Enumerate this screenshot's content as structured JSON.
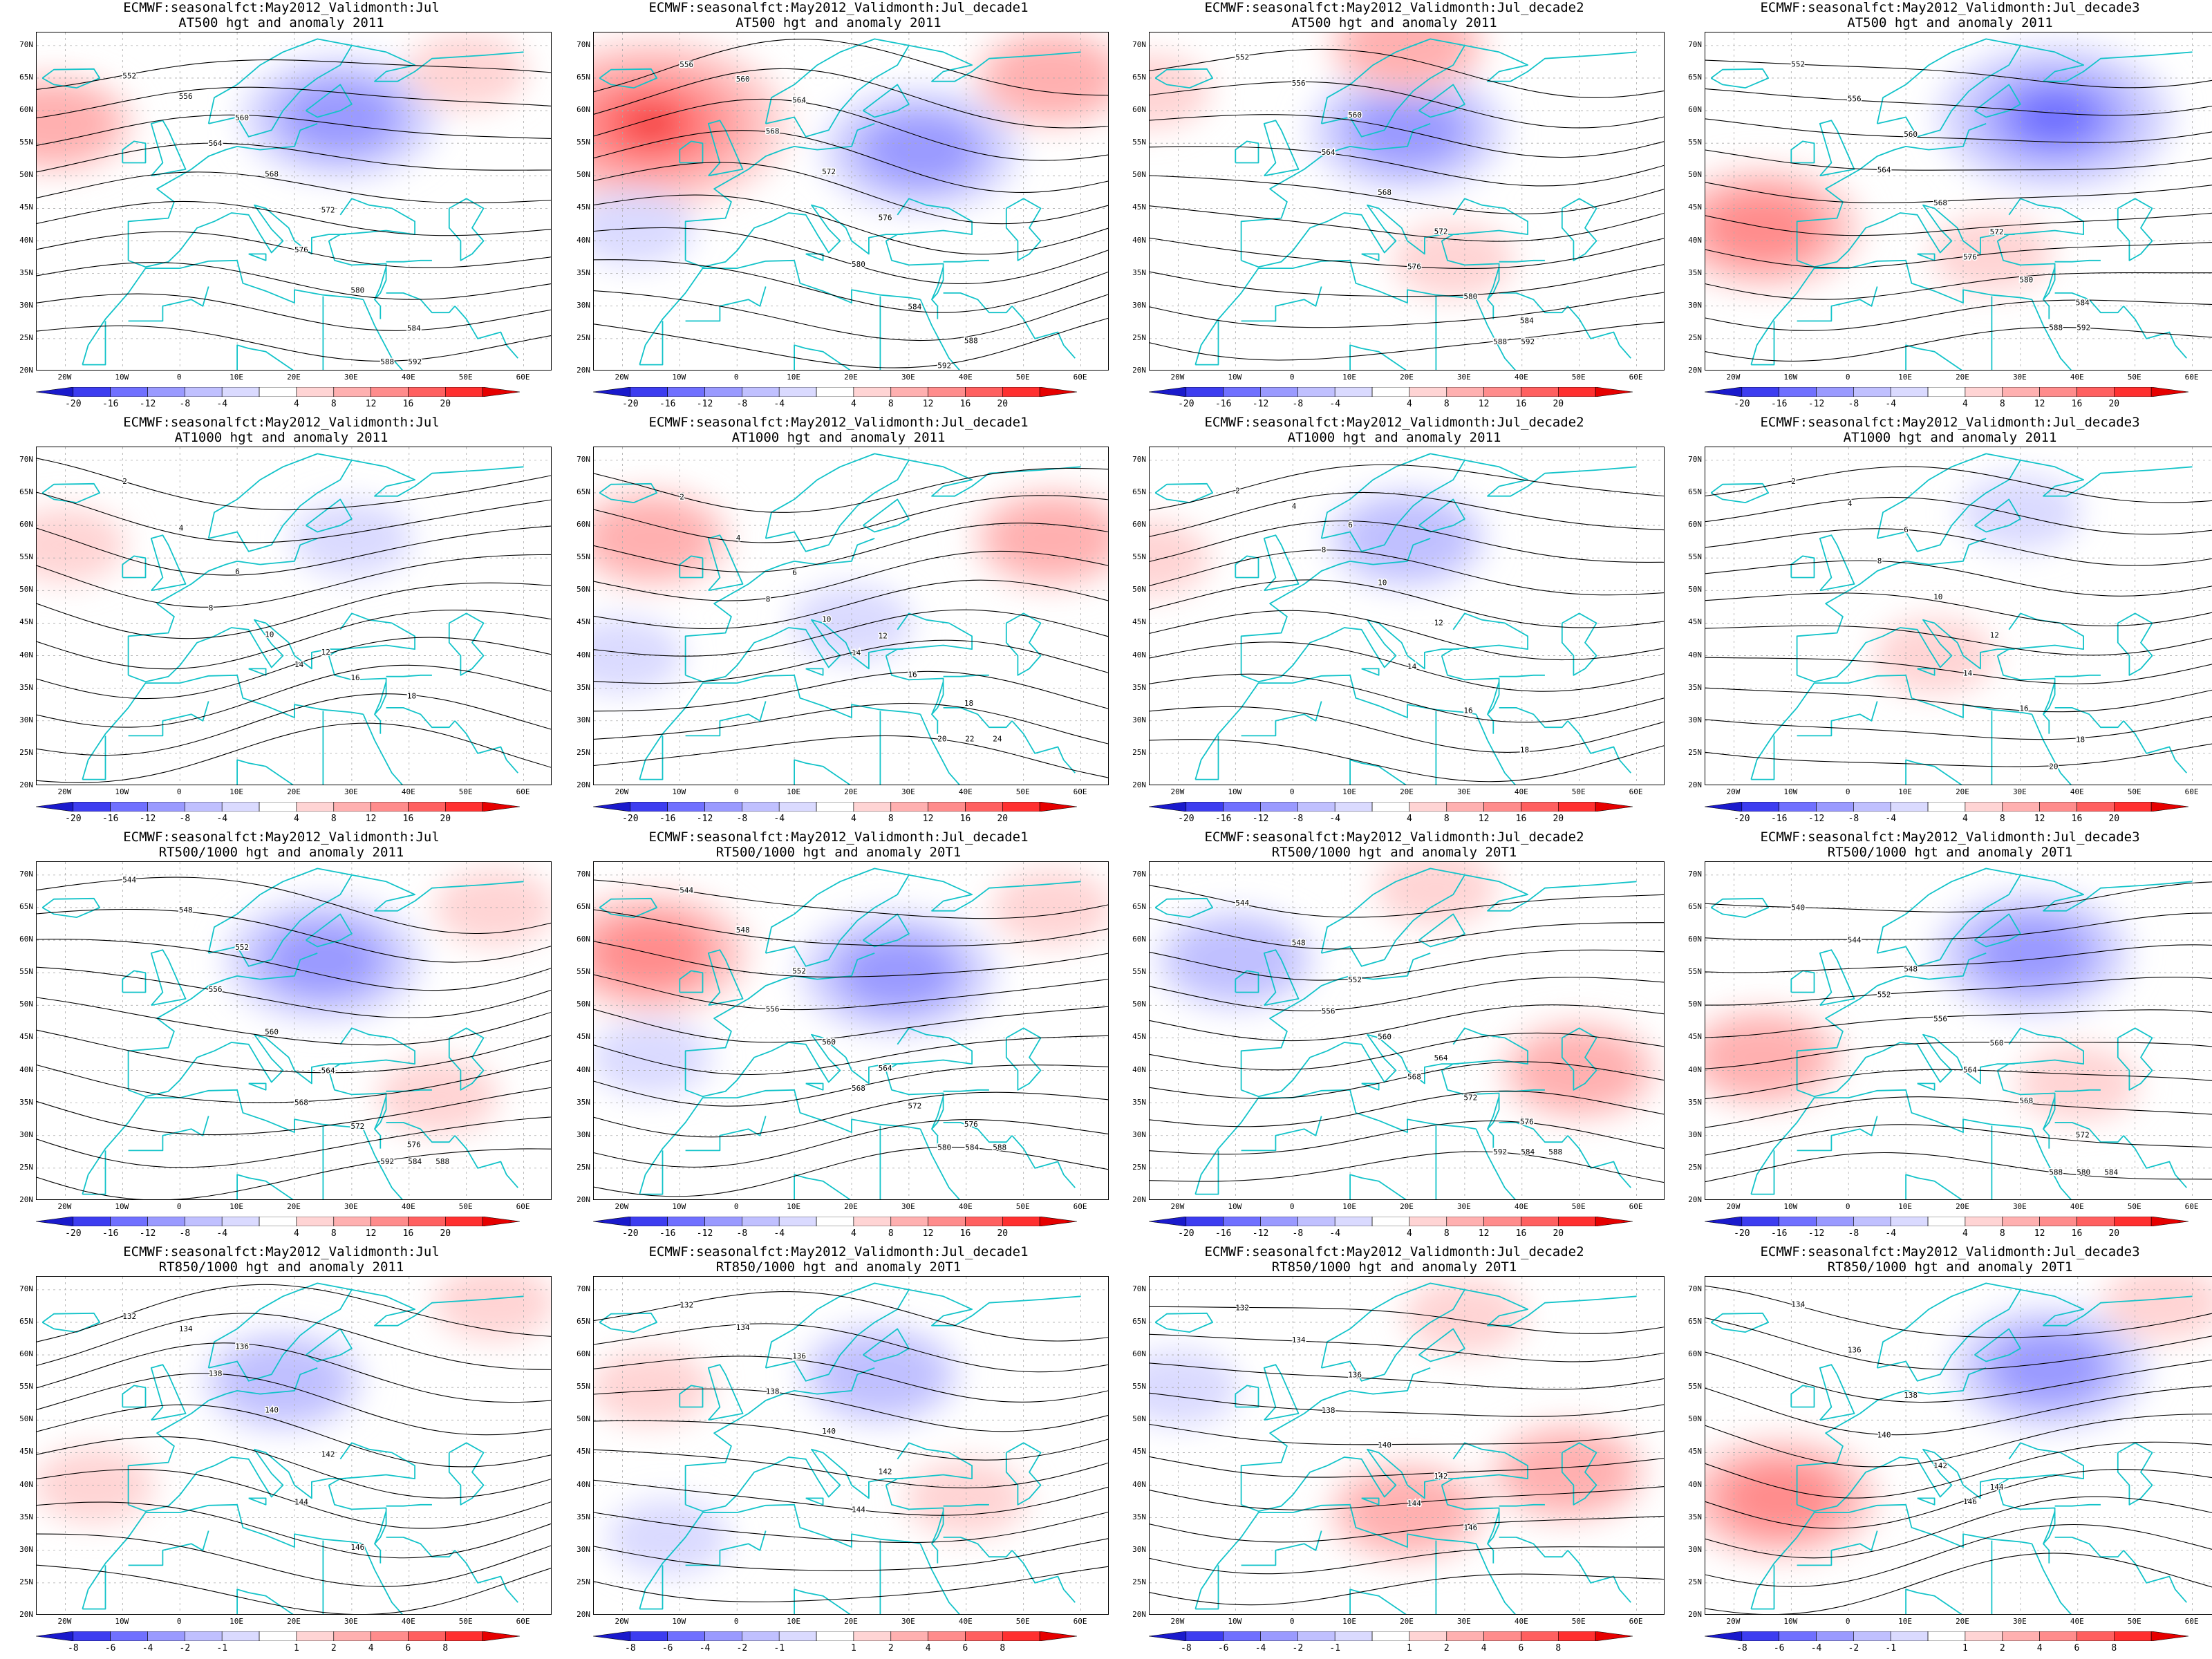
{
  "latitudes": [
    "70N",
    "65N",
    "60N",
    "55N",
    "50N",
    "45N",
    "40N",
    "35N",
    "30N",
    "25N",
    "20N"
  ],
  "longitudes": [
    "20W",
    "10W",
    "0",
    "10E",
    "20E",
    "30E",
    "40E",
    "50E",
    "60E"
  ],
  "colorbar_colors": [
    "#1a1acc",
    "#3d3df0",
    "#7070ff",
    "#9a9aff",
    "#c0c0ff",
    "#dadaff",
    "#ffffff",
    "#ffd4d4",
    "#ffb0b0",
    "#ff8c8c",
    "#ff6060",
    "#ff3030",
    "#e60000"
  ],
  "colorbars": {
    "hgt": [
      "-20",
      "-16",
      "-12",
      "-8",
      "-4",
      "4",
      "8",
      "12",
      "16",
      "20"
    ],
    "thick": [
      "-8",
      "-6",
      "-4",
      "-2",
      "-1",
      "1",
      "2",
      "4",
      "6",
      "8"
    ]
  },
  "panels": [
    {
      "title1": "ECMWF:seasonalfct:May2012_Validmonth:Jul",
      "title2": "AT500 hgt and anomaly 2011",
      "cbar": "hgt",
      "contour_labels": [
        "552",
        "556",
        "560",
        "564",
        "568",
        "572",
        "576",
        "580",
        "584",
        "588",
        "592"
      ],
      "anomaly_blobs": [
        {
          "lon": 28,
          "lat": 59,
          "sign": "neg",
          "level": 3
        },
        {
          "lon": -22,
          "lat": 58,
          "sign": "pos",
          "level": 2
        },
        {
          "lon": 50,
          "lat": 66,
          "sign": "pos",
          "level": 1
        }
      ]
    },
    {
      "title1": "ECMWF:seasonalfct:May2012_Validmonth:Jul_decade1",
      "title2": "AT500 hgt and anomaly 2011",
      "cbar": "hgt",
      "contour_labels": [
        "556",
        "560",
        "564",
        "568",
        "572",
        "576",
        "580",
        "584",
        "588",
        "592"
      ],
      "anomaly_blobs": [
        {
          "lon": -15,
          "lat": 58,
          "sign": "pos",
          "level": 5
        },
        {
          "lon": 32,
          "lat": 54,
          "sign": "neg",
          "level": 3
        },
        {
          "lon": -18,
          "lat": 42,
          "sign": "neg",
          "level": 1
        },
        {
          "lon": 55,
          "lat": 65,
          "sign": "pos",
          "level": 2
        }
      ]
    },
    {
      "title1": "ECMWF:seasonalfct:May2012_Validmonth:Jul_decade2",
      "title2": "AT500 hgt and anomaly 2011",
      "cbar": "hgt",
      "contour_labels": [
        "552",
        "556",
        "560",
        "564",
        "568",
        "572",
        "576",
        "580",
        "584",
        "588",
        "592"
      ],
      "anomaly_blobs": [
        {
          "lon": 20,
          "lat": 57,
          "sign": "neg",
          "level": 3
        },
        {
          "lon": 20,
          "lat": 70,
          "sign": "pos",
          "level": 2
        },
        {
          "lon": 28,
          "lat": 37,
          "sign": "pos",
          "level": 1
        },
        {
          "lon": -25,
          "lat": 63,
          "sign": "pos",
          "level": 1
        }
      ]
    },
    {
      "title1": "ECMWF:seasonalfct:May2012_Validmonth:Jul_decade3",
      "title2": "AT500 hgt and anomaly 2011",
      "cbar": "hgt",
      "contour_labels": [
        "552",
        "556",
        "560",
        "564",
        "568",
        "572",
        "576",
        "580",
        "584",
        "588",
        "592"
      ],
      "anomaly_blobs": [
        {
          "lon": 36,
          "lat": 59,
          "sign": "neg",
          "level": 4
        },
        {
          "lon": -15,
          "lat": 42,
          "sign": "pos",
          "level": 3
        },
        {
          "lon": 25,
          "lat": 38,
          "sign": "pos",
          "level": 1
        }
      ]
    },
    {
      "title1": "ECMWF:seasonalfct:May2012_Validmonth:Jul",
      "title2": "AT1000 hgt and anomaly 2011",
      "cbar": "hgt",
      "contour_labels": [
        "2",
        "4",
        "6",
        "8",
        "10",
        "12",
        "14",
        "16",
        "18"
      ],
      "anomaly_blobs": [
        {
          "lon": -20,
          "lat": 57,
          "sign": "pos",
          "level": 1
        },
        {
          "lon": 30,
          "lat": 58,
          "sign": "neg",
          "level": 1
        }
      ]
    },
    {
      "title1": "ECMWF:seasonalfct:May2012_Validmonth:Jul_decade1",
      "title2": "AT1000 hgt and anomaly 2011",
      "cbar": "hgt",
      "contour_labels": [
        "2",
        "4",
        "6",
        "8",
        "10",
        "12",
        "14",
        "16",
        "18",
        "20",
        "22",
        "24"
      ],
      "anomaly_blobs": [
        {
          "lon": -15,
          "lat": 58,
          "sign": "pos",
          "level": 2
        },
        {
          "lon": 20,
          "lat": 45,
          "sign": "neg",
          "level": 1
        },
        {
          "lon": 55,
          "lat": 58,
          "sign": "pos",
          "level": 2
        },
        {
          "lon": -20,
          "lat": 40,
          "sign": "neg",
          "level": 1
        }
      ]
    },
    {
      "title1": "ECMWF:seasonalfct:May2012_Validmonth:Jul_decade2",
      "title2": "AT1000 hgt and anomaly 2011",
      "cbar": "hgt",
      "contour_labels": [
        "2",
        "4",
        "6",
        "8",
        "10",
        "12",
        "14",
        "16",
        "18"
      ],
      "anomaly_blobs": [
        {
          "lon": 20,
          "lat": 58,
          "sign": "neg",
          "level": 2
        },
        {
          "lon": -25,
          "lat": 55,
          "sign": "pos",
          "level": 1
        }
      ]
    },
    {
      "title1": "ECMWF:seasonalfct:May2012_Validmonth:Jul_decade3",
      "title2": "AT1000 hgt and anomaly 2011",
      "cbar": "hgt",
      "contour_labels": [
        "2",
        "4",
        "6",
        "8",
        "10",
        "12",
        "14",
        "16",
        "18",
        "20"
      ],
      "anomaly_blobs": [
        {
          "lon": 30,
          "lat": 62,
          "sign": "neg",
          "level": 1
        },
        {
          "lon": 15,
          "lat": 40,
          "sign": "pos",
          "level": 1
        }
      ]
    },
    {
      "title1": "ECMWF:seasonalfct:May2012_Validmonth:Jul",
      "title2": "RT500/1000 hgt and anomaly 2011",
      "cbar": "hgt",
      "contour_labels": [
        "544",
        "548",
        "552",
        "556",
        "560",
        "564",
        "568",
        "572",
        "576",
        "580",
        "584",
        "588",
        "592"
      ],
      "anomaly_blobs": [
        {
          "lon": 25,
          "lat": 57,
          "sign": "neg",
          "level": 3
        },
        {
          "lon": 55,
          "lat": 65,
          "sign": "pos",
          "level": 1
        },
        {
          "lon": 45,
          "lat": 36,
          "sign": "pos",
          "level": 1
        }
      ]
    },
    {
      "title1": "ECMWF:seasonalfct:May2012_Validmonth:Jul_decade1",
      "title2": "RT500/1000 hgt and anomaly 20T1",
      "cbar": "hgt",
      "contour_labels": [
        "544",
        "548",
        "552",
        "556",
        "560",
        "564",
        "568",
        "572",
        "576",
        "580",
        "584",
        "588"
      ],
      "anomaly_blobs": [
        {
          "lon": -15,
          "lat": 58,
          "sign": "pos",
          "level": 3
        },
        {
          "lon": 28,
          "lat": 55,
          "sign": "neg",
          "level": 3
        },
        {
          "lon": -15,
          "lat": 42,
          "sign": "neg",
          "level": 1
        },
        {
          "lon": 55,
          "lat": 65,
          "sign": "pos",
          "level": 1
        }
      ]
    },
    {
      "title1": "ECMWF:seasonalfct:May2012_Validmonth:Jul_decade2",
      "title2": "RT500/1000 hgt and anomaly 20T1",
      "cbar": "hgt",
      "contour_labels": [
        "544",
        "548",
        "552",
        "556",
        "560",
        "564",
        "568",
        "572",
        "576",
        "580",
        "584",
        "588",
        "592"
      ],
      "anomaly_blobs": [
        {
          "lon": -10,
          "lat": 57,
          "sign": "neg",
          "level": 2
        },
        {
          "lon": 25,
          "lat": 68,
          "sign": "pos",
          "level": 1
        },
        {
          "lon": 50,
          "lat": 40,
          "sign": "pos",
          "level": 2
        }
      ]
    },
    {
      "title1": "ECMWF:seasonalfct:May2012_Validmonth:Jul_decade3",
      "title2": "RT500/1000 hgt and anomaly 20T1",
      "cbar": "hgt",
      "contour_labels": [
        "540",
        "544",
        "548",
        "552",
        "556",
        "560",
        "564",
        "568",
        "572",
        "576",
        "580",
        "584",
        "588"
      ],
      "anomaly_blobs": [
        {
          "lon": 32,
          "lat": 58,
          "sign": "neg",
          "level": 3
        },
        {
          "lon": -15,
          "lat": 42,
          "sign": "pos",
          "level": 2
        },
        {
          "lon": 40,
          "lat": 38,
          "sign": "pos",
          "level": 1
        }
      ]
    },
    {
      "title1": "ECMWF:seasonalfct:May2012_Validmonth:Jul",
      "title2": "RT850/1000 hgt and anomaly 2011",
      "cbar": "thick",
      "contour_labels": [
        "132",
        "134",
        "136",
        "138",
        "140",
        "142",
        "144",
        "146"
      ],
      "anomaly_blobs": [
        {
          "lon": 18,
          "lat": 56,
          "sign": "neg",
          "level": 2
        },
        {
          "lon": 55,
          "lat": 68,
          "sign": "pos",
          "level": 1
        },
        {
          "lon": -15,
          "lat": 40,
          "sign": "pos",
          "level": 1
        }
      ]
    },
    {
      "title1": "ECMWF:seasonalfct:May2012_Validmonth:Jul_decade1",
      "title2": "RT850/1000 hgt and anomaly 20T1",
      "cbar": "thick",
      "contour_labels": [
        "132",
        "134",
        "136",
        "138",
        "140",
        "142",
        "144"
      ],
      "anomaly_blobs": [
        {
          "lon": 25,
          "lat": 57,
          "sign": "neg",
          "level": 2
        },
        {
          "lon": -15,
          "lat": 55,
          "sign": "pos",
          "level": 1
        },
        {
          "lon": -12,
          "lat": 32,
          "sign": "neg",
          "level": 1
        },
        {
          "lon": 40,
          "lat": 38,
          "sign": "pos",
          "level": 1
        }
      ]
    },
    {
      "title1": "ECMWF:seasonalfct:May2012_Validmonth:Jul_decade2",
      "title2": "RT850/1000 hgt and anomaly 20T1",
      "cbar": "thick",
      "contour_labels": [
        "132",
        "134",
        "136",
        "138",
        "140",
        "142",
        "144",
        "146"
      ],
      "anomaly_blobs": [
        {
          "lon": -20,
          "lat": 55,
          "sign": "neg",
          "level": 1
        },
        {
          "lon": 30,
          "lat": 66,
          "sign": "pos",
          "level": 1
        },
        {
          "lon": 20,
          "lat": 36,
          "sign": "pos",
          "level": 2
        },
        {
          "lon": 48,
          "lat": 42,
          "sign": "pos",
          "level": 2
        }
      ]
    },
    {
      "title1": "ECMWF:seasonalfct:May2012_Validmonth:Jul_decade3",
      "title2": "RT850/1000 hgt and anomaly 20T1",
      "cbar": "thick",
      "contour_labels": [
        "134",
        "136",
        "138",
        "140",
        "142",
        "144",
        "146"
      ],
      "anomaly_blobs": [
        {
          "lon": 35,
          "lat": 58,
          "sign": "neg",
          "level": 3
        },
        {
          "lon": -12,
          "lat": 38,
          "sign": "pos",
          "level": 3
        },
        {
          "lon": 55,
          "lat": 68,
          "sign": "pos",
          "level": 1
        }
      ]
    }
  ]
}
